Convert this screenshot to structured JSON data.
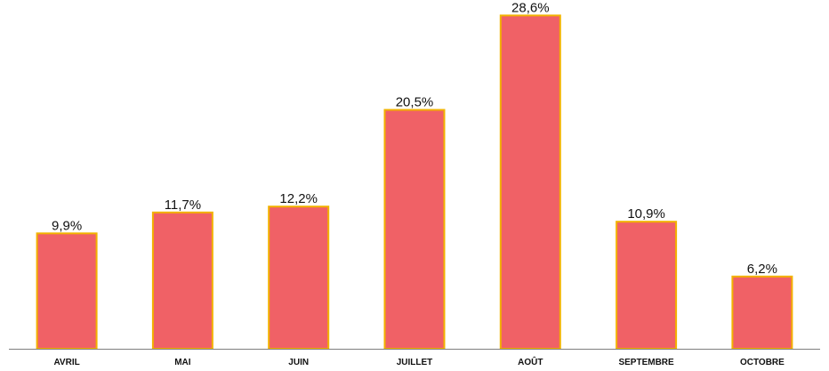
{
  "chart_data": {
    "type": "bar",
    "title": "",
    "xlabel": "",
    "ylabel": "",
    "categories": [
      "AVRIL",
      "MAI",
      "JUIN",
      "JUILLET",
      "AOÛT",
      "SEPTEMBRE",
      "OCTOBRE"
    ],
    "values": [
      9.9,
      11.7,
      12.2,
      20.5,
      28.6,
      10.9,
      6.2
    ],
    "data_labels": [
      "9,9%",
      "11,7%",
      "12,2%",
      "20,5%",
      "28,6%",
      "10,9%",
      "6,2%"
    ],
    "unit": "%",
    "ylim": [
      0,
      29.7
    ],
    "grid": false,
    "legend": "none",
    "colors": {
      "bar_fill": "#f06166",
      "bar_border": "#f2b200",
      "axis": "#7f7f7f",
      "text": "#111111"
    }
  }
}
